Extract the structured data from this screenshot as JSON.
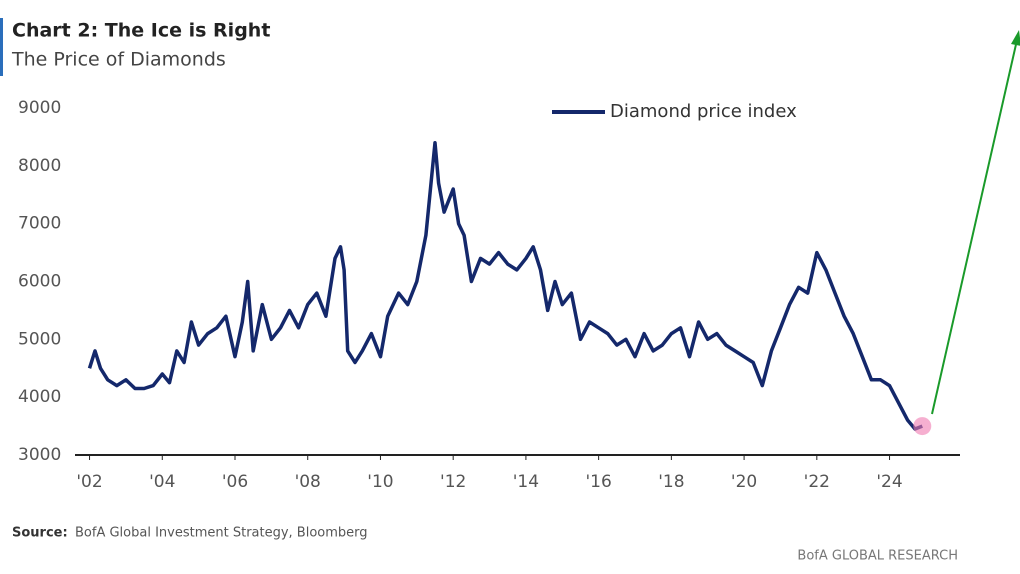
{
  "chart_data": {
    "type": "line",
    "title": "Chart 2: The Ice is Right",
    "subtitle": "The Price of Diamonds",
    "source_label": "Source:",
    "source": "BofA Global Investment Strategy, Bloomberg",
    "branding": "BofA GLOBAL RESEARCH",
    "legend_position": "top-right",
    "xlim": [
      2001.6,
      2025.8
    ],
    "ylim": [
      3000,
      9000
    ],
    "yticks": [
      3000,
      4000,
      5000,
      6000,
      7000,
      8000,
      9000
    ],
    "xticks": [
      {
        "value": 2002,
        "label": "'02"
      },
      {
        "value": 2004,
        "label": "'04"
      },
      {
        "value": 2006,
        "label": "'06"
      },
      {
        "value": 2008,
        "label": "'08"
      },
      {
        "value": 2010,
        "label": "'10"
      },
      {
        "value": 2012,
        "label": "'12"
      },
      {
        "value": 2014,
        "label": "'14"
      },
      {
        "value": 2016,
        "label": "'16"
      },
      {
        "value": 2018,
        "label": "'18"
      },
      {
        "value": 2020,
        "label": "'20"
      },
      {
        "value": 2022,
        "label": "'22"
      },
      {
        "value": 2024,
        "label": "'24"
      }
    ],
    "x": [
      2002.0,
      2002.15,
      2002.3,
      2002.5,
      2002.75,
      2003.0,
      2003.25,
      2003.5,
      2003.75,
      2004.0,
      2004.2,
      2004.4,
      2004.6,
      2004.8,
      2005.0,
      2005.25,
      2005.5,
      2005.75,
      2006.0,
      2006.2,
      2006.35,
      2006.5,
      2006.75,
      2007.0,
      2007.25,
      2007.5,
      2007.75,
      2008.0,
      2008.25,
      2008.5,
      2008.75,
      2008.9,
      2009.0,
      2009.1,
      2009.3,
      2009.5,
      2009.75,
      2010.0,
      2010.2,
      2010.5,
      2010.75,
      2011.0,
      2011.25,
      2011.5,
      2011.6,
      2011.75,
      2012.0,
      2012.15,
      2012.3,
      2012.5,
      2012.75,
      2013.0,
      2013.25,
      2013.5,
      2013.75,
      2014.0,
      2014.2,
      2014.4,
      2014.6,
      2014.8,
      2015.0,
      2015.25,
      2015.5,
      2015.75,
      2016.0,
      2016.25,
      2016.5,
      2016.75,
      2017.0,
      2017.25,
      2017.5,
      2017.75,
      2018.0,
      2018.25,
      2018.5,
      2018.75,
      2019.0,
      2019.25,
      2019.5,
      2019.75,
      2020.0,
      2020.25,
      2020.5,
      2020.75,
      2021.0,
      2021.25,
      2021.5,
      2021.75,
      2022.0,
      2022.25,
      2022.5,
      2022.75,
      2023.0,
      2023.25,
      2023.5,
      2023.75,
      2024.0,
      2024.25,
      2024.5,
      2024.7,
      2024.9
    ],
    "series": [
      {
        "name": "Diamond price index",
        "color": "#14286b",
        "values": [
          4500,
          4800,
          4500,
          4300,
          4200,
          4300,
          4150,
          4150,
          4200,
          4400,
          4250,
          4800,
          4600,
          5300,
          4900,
          5100,
          5200,
          5400,
          4700,
          5300,
          6000,
          4800,
          5600,
          5000,
          5200,
          5500,
          5200,
          5600,
          5800,
          5400,
          6400,
          6600,
          6200,
          4800,
          4600,
          4800,
          5100,
          4700,
          5400,
          5800,
          5600,
          6000,
          6800,
          8400,
          7700,
          7200,
          7600,
          7000,
          6800,
          6000,
          6400,
          6300,
          6500,
          6300,
          6200,
          6400,
          6600,
          6200,
          5500,
          6000,
          5600,
          5800,
          5000,
          5300,
          5200,
          5100,
          4900,
          5000,
          4700,
          5100,
          4800,
          4900,
          5100,
          5200,
          4700,
          5300,
          5000,
          5100,
          4900,
          4800,
          4700,
          4600,
          4200,
          4800,
          5200,
          5600,
          5900,
          5800,
          6500,
          6200,
          5800,
          5400,
          5100,
          4700,
          4300,
          4300,
          4200,
          3900,
          3600,
          3450,
          3500
        ]
      }
    ]
  }
}
